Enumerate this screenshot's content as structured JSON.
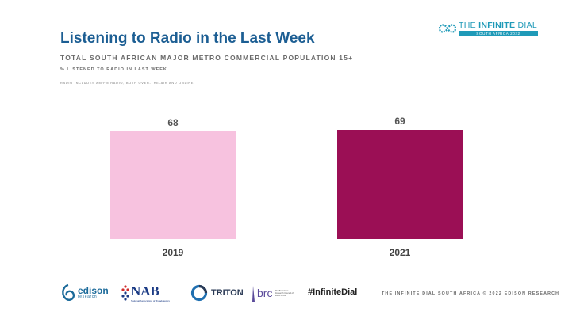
{
  "header": {
    "title": "Listening to Radio in the Last Week",
    "subtitle": "TOTAL SOUTH AFRICAN MAJOR METRO COMMERCIAL POPULATION 15+",
    "measure_note": "% LISTENED TO RADIO IN LAST WEEK",
    "footnote": "RADIO INCLUDES AM/FM RADIO, BOTH OVER-THE-AIR AND ONLINE"
  },
  "brand": {
    "name_prefix": "THE ",
    "name_bold": "INFINITE",
    "name_suffix": " DIAL",
    "band": "SOUTH AFRICA 2022",
    "accent": "#1f9ab8"
  },
  "chart_data": {
    "type": "bar",
    "title": "Listening to Radio in the Last Week",
    "categories": [
      "2019",
      "2021"
    ],
    "values": [
      68,
      69
    ],
    "colors": [
      "#f7c2df",
      "#9b0f55"
    ],
    "ylim": [
      0,
      100
    ],
    "grid": false,
    "legend": "none",
    "xlabel": "",
    "ylabel": ""
  },
  "footer": {
    "logos": {
      "edison": "edison",
      "edison_sub": "research",
      "nab": "NAB",
      "nab_sub": "National Association of Broadcasters",
      "triton": "TRITON",
      "brc": "brc",
      "brc_sub": "The Broadcast Research Council of South Africa"
    },
    "hashtag": "#InfiniteDial",
    "copyright": "THE INFINITE DIAL SOUTH AFRICA  © 2022 EDISON RESEARCH"
  }
}
